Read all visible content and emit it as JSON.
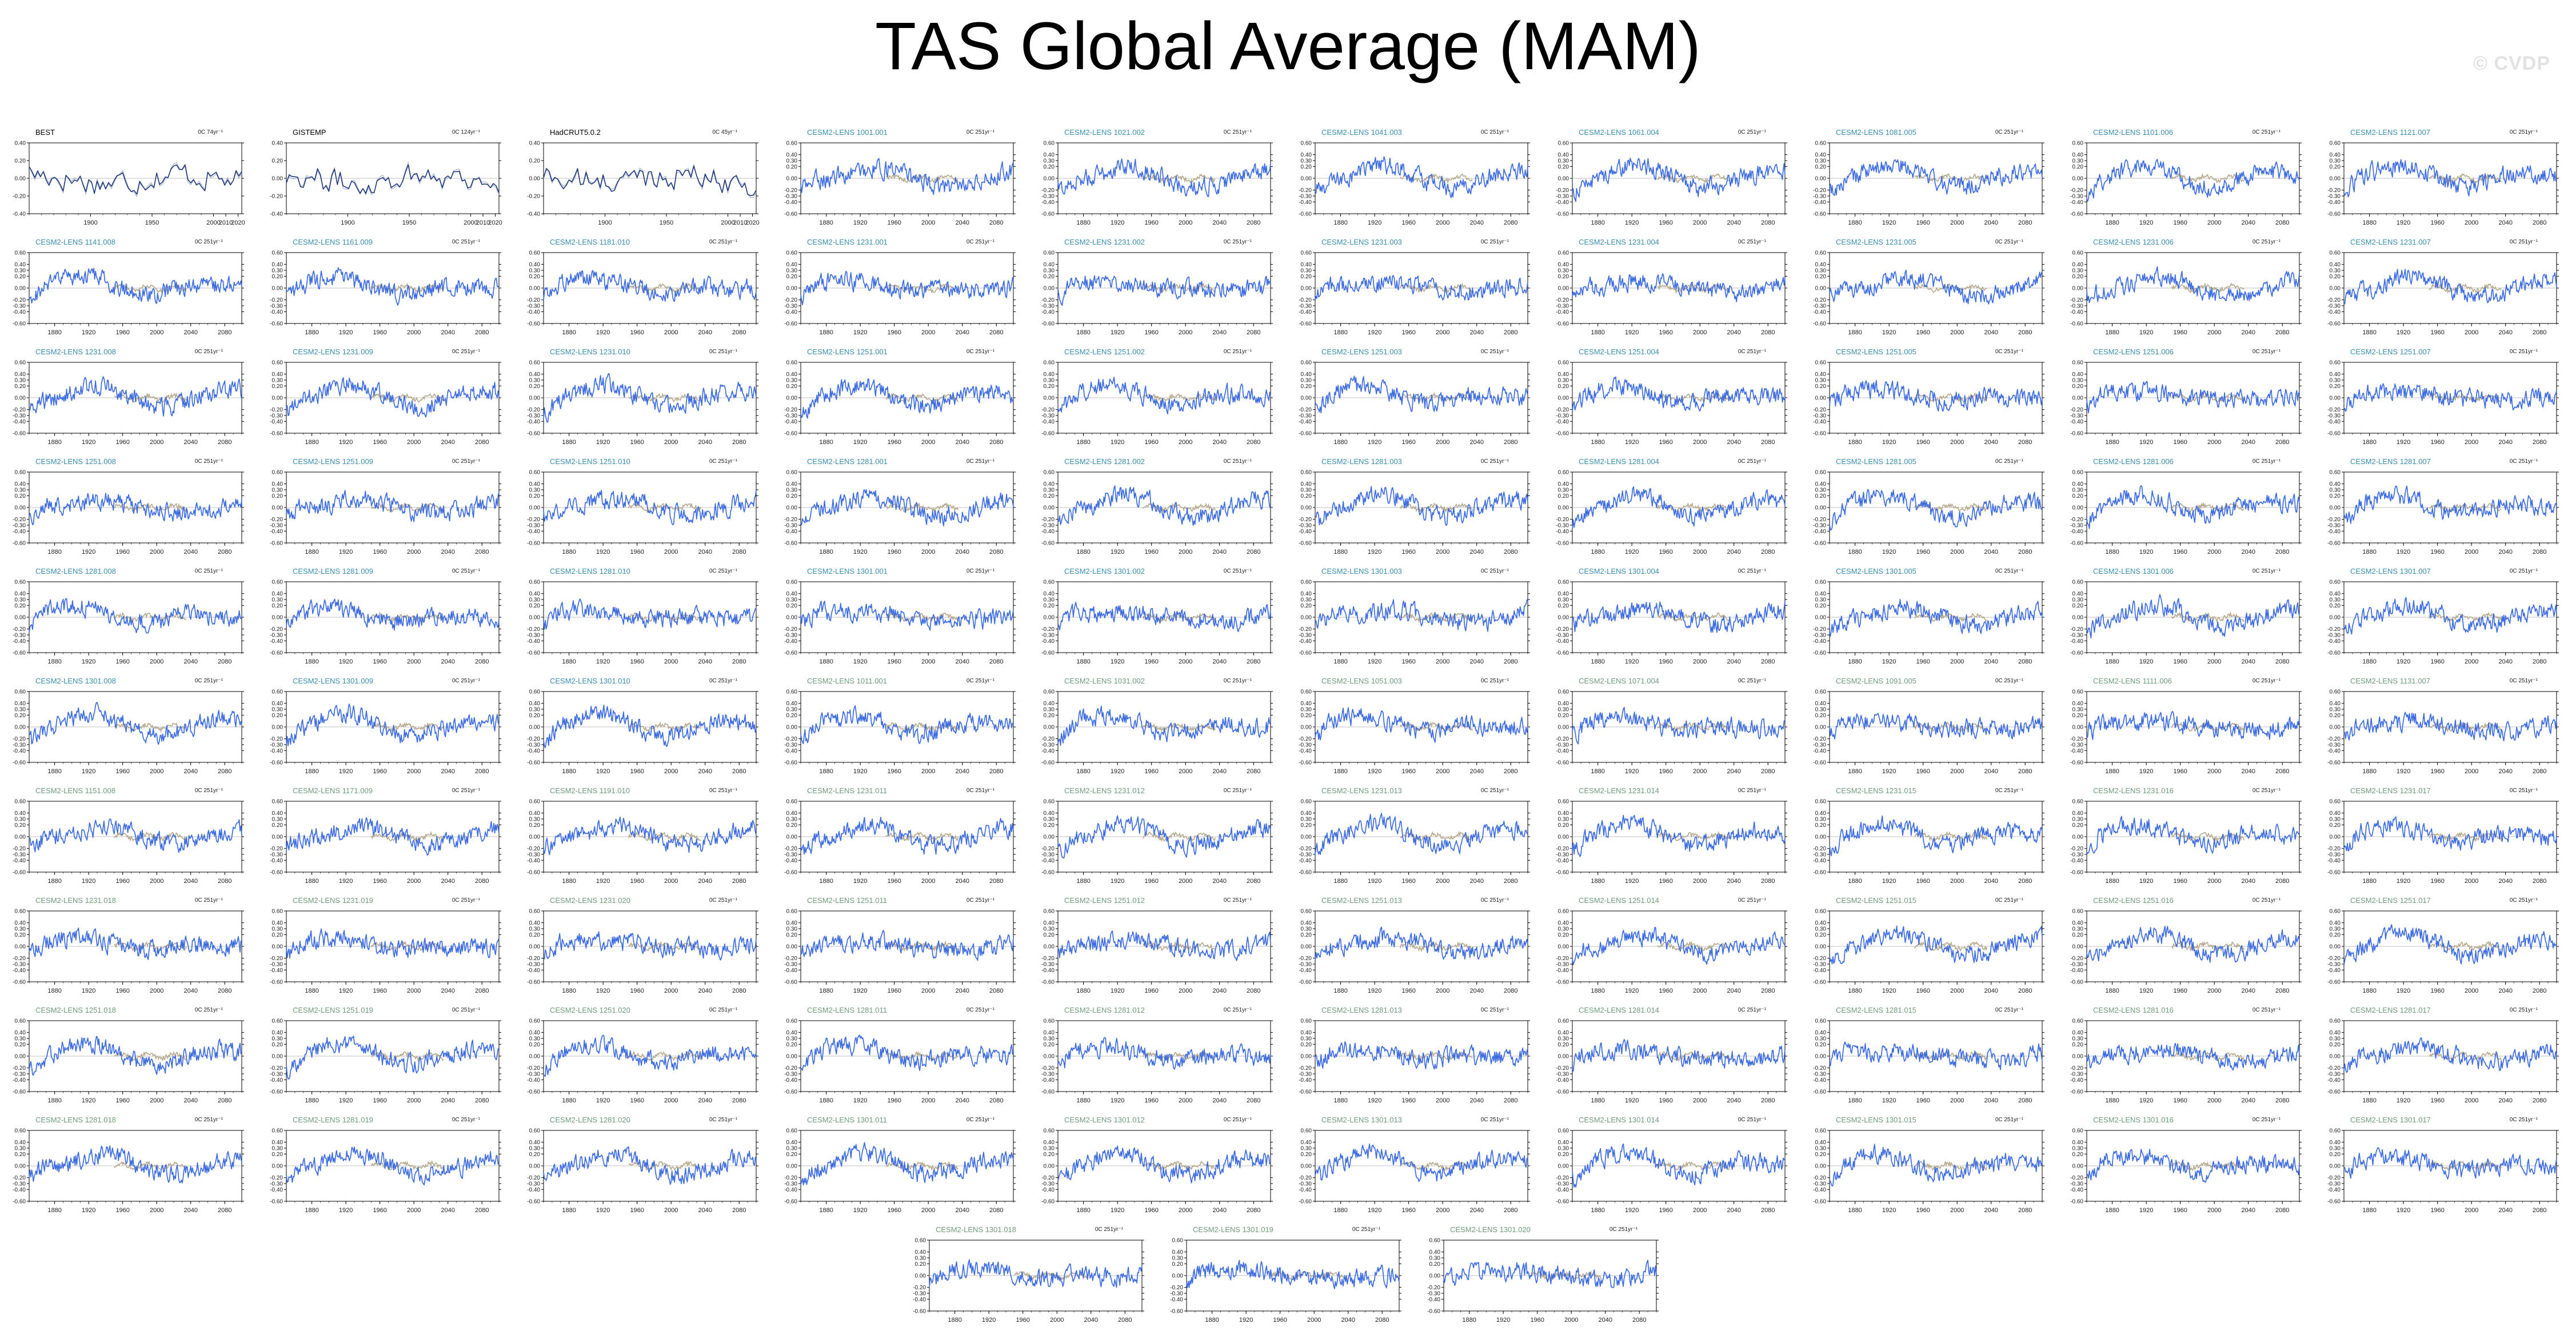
{
  "title": "TAS Global Average (MAM)",
  "watermark": "© CVDP",
  "colors": {
    "series": "#3d6be0",
    "observation": "#1f3a7a",
    "reference": "#b5a88a",
    "zero_line": "#bfbfbf",
    "label_cesm_early": "#3b8fb0",
    "label_cesm_late": "#6f9c7c",
    "label_obs": "#000000"
  },
  "chart_data": {
    "type": "line",
    "layout": "small-multiples",
    "columns": 10,
    "observation_x_range": [
      1850,
      2023
    ],
    "model_x_range": [
      1850,
      2100
    ],
    "observation_xticks": [
      1900,
      1950,
      2000,
      2010,
      2020
    ],
    "model_xticks": [
      1880,
      1920,
      1960,
      2000,
      2040,
      2080
    ],
    "observation_ylim": [
      -0.4,
      0.4
    ],
    "model_ylim": [
      -0.6,
      0.6
    ],
    "observation_yticks": [
      "0.40",
      "0.20",
      "0.00",
      "-0.20",
      "-0.40"
    ],
    "model_yticks": [
      "0.60",
      "0.40",
      "0.30",
      "0.20",
      "0.00",
      "-0.20",
      "-0.30",
      "-0.40",
      "-0.60"
    ],
    "panels": [
      {
        "title": "BEST",
        "kind": "obs",
        "trend": "0C 74yr⁻¹"
      },
      {
        "title": "GISTEMP",
        "kind": "obs",
        "trend": "0C 124yr⁻¹"
      },
      {
        "title": "HadCRUT5.0.2",
        "kind": "obs",
        "trend": "0C 45yr⁻¹"
      },
      {
        "title": "CESM2-LENS 1001.001",
        "kind": "model",
        "trend": "0C 251yr⁻¹"
      },
      {
        "title": "CESM2-LENS 1021.002",
        "kind": "model",
        "trend": "0C 251yr⁻¹"
      },
      {
        "title": "CESM2-LENS 1041.003",
        "kind": "model",
        "trend": "0C 251yr⁻¹"
      },
      {
        "title": "CESM2-LENS 1061.004",
        "kind": "model",
        "trend": "0C 251yr⁻¹"
      },
      {
        "title": "CESM2-LENS 1081.005",
        "kind": "model",
        "trend": "0C 251yr⁻¹"
      },
      {
        "title": "CESM2-LENS 1101.006",
        "kind": "model",
        "trend": "0C 251yr⁻¹"
      },
      {
        "title": "CESM2-LENS 1121.007",
        "kind": "model",
        "trend": "0C 251yr⁻¹"
      },
      {
        "title": "CESM2-LENS 1141.008",
        "kind": "model",
        "trend": "0C 251yr⁻¹"
      },
      {
        "title": "CESM2-LENS 1161.009",
        "kind": "model",
        "trend": "0C 251yr⁻¹"
      },
      {
        "title": "CESM2-LENS 1181.010",
        "kind": "model",
        "trend": "0C 251yr⁻¹"
      },
      {
        "title": "CESM2-LENS 1231.001",
        "kind": "model",
        "trend": "0C 251yr⁻¹"
      },
      {
        "title": "CESM2-LENS 1231.002",
        "kind": "model",
        "trend": "0C 251yr⁻¹"
      },
      {
        "title": "CESM2-LENS 1231.003",
        "kind": "model",
        "trend": "0C 251yr⁻¹"
      },
      {
        "title": "CESM2-LENS 1231.004",
        "kind": "model",
        "trend": "0C 251yr⁻¹"
      },
      {
        "title": "CESM2-LENS 1231.005",
        "kind": "model",
        "trend": "0C 251yr⁻¹"
      },
      {
        "title": "CESM2-LENS 1231.006",
        "kind": "model",
        "trend": "0C 251yr⁻¹"
      },
      {
        "title": "CESM2-LENS 1231.007",
        "kind": "model",
        "trend": "0C 251yr⁻¹"
      },
      {
        "title": "CESM2-LENS 1231.008",
        "kind": "model",
        "trend": "0C 251yr⁻¹"
      },
      {
        "title": "CESM2-LENS 1231.009",
        "kind": "model",
        "trend": "0C 251yr⁻¹"
      },
      {
        "title": "CESM2-LENS 1231.010",
        "kind": "model",
        "trend": "0C 251yr⁻¹"
      },
      {
        "title": "CESM2-LENS 1251.001",
        "kind": "model",
        "trend": "0C 251yr⁻¹"
      },
      {
        "title": "CESM2-LENS 1251.002",
        "kind": "model",
        "trend": "0C 251yr⁻¹"
      },
      {
        "title": "CESM2-LENS 1251.003",
        "kind": "model",
        "trend": "0C 251yr⁻¹"
      },
      {
        "title": "CESM2-LENS 1251.004",
        "kind": "model",
        "trend": "0C 251yr⁻¹"
      },
      {
        "title": "CESM2-LENS 1251.005",
        "kind": "model",
        "trend": "0C 251yr⁻¹"
      },
      {
        "title": "CESM2-LENS 1251.006",
        "kind": "model",
        "trend": "0C 251yr⁻¹"
      },
      {
        "title": "CESM2-LENS 1251.007",
        "kind": "model",
        "trend": "0C 251yr⁻¹"
      },
      {
        "title": "CESM2-LENS 1251.008",
        "kind": "model",
        "trend": "0C 251yr⁻¹"
      },
      {
        "title": "CESM2-LENS 1251.009",
        "kind": "model",
        "trend": "0C 251yr⁻¹"
      },
      {
        "title": "CESM2-LENS 1251.010",
        "kind": "model",
        "trend": "0C 251yr⁻¹"
      },
      {
        "title": "CESM2-LENS 1281.001",
        "kind": "model",
        "trend": "0C 251yr⁻¹"
      },
      {
        "title": "CESM2-LENS 1281.002",
        "kind": "model",
        "trend": "0C 251yr⁻¹"
      },
      {
        "title": "CESM2-LENS 1281.003",
        "kind": "model",
        "trend": "0C 251yr⁻¹"
      },
      {
        "title": "CESM2-LENS 1281.004",
        "kind": "model",
        "trend": "0C 251yr⁻¹"
      },
      {
        "title": "CESM2-LENS 1281.005",
        "kind": "model",
        "trend": "0C 251yr⁻¹"
      },
      {
        "title": "CESM2-LENS 1281.006",
        "kind": "model",
        "trend": "0C 251yr⁻¹"
      },
      {
        "title": "CESM2-LENS 1281.007",
        "kind": "model",
        "trend": "0C 251yr⁻¹"
      },
      {
        "title": "CESM2-LENS 1281.008",
        "kind": "model",
        "trend": "0C 251yr⁻¹"
      },
      {
        "title": "CESM2-LENS 1281.009",
        "kind": "model",
        "trend": "0C 251yr⁻¹"
      },
      {
        "title": "CESM2-LENS 1281.010",
        "kind": "model",
        "trend": "0C 251yr⁻¹"
      },
      {
        "title": "CESM2-LENS 1301.001",
        "kind": "model",
        "trend": "0C 251yr⁻¹"
      },
      {
        "title": "CESM2-LENS 1301.002",
        "kind": "model",
        "trend": "0C 251yr⁻¹"
      },
      {
        "title": "CESM2-LENS 1301.003",
        "kind": "model",
        "trend": "0C 251yr⁻¹"
      },
      {
        "title": "CESM2-LENS 1301.004",
        "kind": "model",
        "trend": "0C 251yr⁻¹"
      },
      {
        "title": "CESM2-LENS 1301.005",
        "kind": "model",
        "trend": "0C 251yr⁻¹"
      },
      {
        "title": "CESM2-LENS 1301.006",
        "kind": "model",
        "trend": "0C 251yr⁻¹"
      },
      {
        "title": "CESM2-LENS 1301.007",
        "kind": "model",
        "trend": "0C 251yr⁻¹"
      },
      {
        "title": "CESM2-LENS 1301.008",
        "kind": "model",
        "trend": "0C 251yr⁻¹"
      },
      {
        "title": "CESM2-LENS 1301.009",
        "kind": "model",
        "trend": "0C 251yr⁻¹"
      },
      {
        "title": "CESM2-LENS 1301.010",
        "kind": "model",
        "trend": "0C 251yr⁻¹"
      },
      {
        "title": "CESM2-LENS 1011.001",
        "kind": "model",
        "trend": "0C 251yr⁻¹"
      },
      {
        "title": "CESM2-LENS 1031.002",
        "kind": "model",
        "trend": "0C 251yr⁻¹"
      },
      {
        "title": "CESM2-LENS 1051.003",
        "kind": "model",
        "trend": "0C 251yr⁻¹"
      },
      {
        "title": "CESM2-LENS 1071.004",
        "kind": "model",
        "trend": "0C 251yr⁻¹"
      },
      {
        "title": "CESM2-LENS 1091.005",
        "kind": "model",
        "trend": "0C 251yr⁻¹"
      },
      {
        "title": "CESM2-LENS 1111.006",
        "kind": "model",
        "trend": "0C 251yr⁻¹"
      },
      {
        "title": "CESM2-LENS 1131.007",
        "kind": "model",
        "trend": "0C 251yr⁻¹"
      },
      {
        "title": "CESM2-LENS 1151.008",
        "kind": "model",
        "trend": "0C 251yr⁻¹"
      },
      {
        "title": "CESM2-LENS 1171.009",
        "kind": "model",
        "trend": "0C 251yr⁻¹"
      },
      {
        "title": "CESM2-LENS 1191.010",
        "kind": "model",
        "trend": "0C 251yr⁻¹"
      },
      {
        "title": "CESM2-LENS 1231.011",
        "kind": "model",
        "trend": "0C 251yr⁻¹"
      },
      {
        "title": "CESM2-LENS 1231.012",
        "kind": "model",
        "trend": "0C 251yr⁻¹"
      },
      {
        "title": "CESM2-LENS 1231.013",
        "kind": "model",
        "trend": "0C 251yr⁻¹"
      },
      {
        "title": "CESM2-LENS 1231.014",
        "kind": "model",
        "trend": "0C 251yr⁻¹"
      },
      {
        "title": "CESM2-LENS 1231.015",
        "kind": "model",
        "trend": "0C 251yr⁻¹"
      },
      {
        "title": "CESM2-LENS 1231.016",
        "kind": "model",
        "trend": "0C 251yr⁻¹"
      },
      {
        "title": "CESM2-LENS 1231.017",
        "kind": "model",
        "trend": "0C 251yr⁻¹"
      },
      {
        "title": "CESM2-LENS 1231.018",
        "kind": "model",
        "trend": "0C 251yr⁻¹"
      },
      {
        "title": "CESM2-LENS 1231.019",
        "kind": "model",
        "trend": "0C 251yr⁻¹"
      },
      {
        "title": "CESM2-LENS 1231.020",
        "kind": "model",
        "trend": "0C 251yr⁻¹"
      },
      {
        "title": "CESM2-LENS 1251.011",
        "kind": "model",
        "trend": "0C 251yr⁻¹"
      },
      {
        "title": "CESM2-LENS 1251.012",
        "kind": "model",
        "trend": "0C 251yr⁻¹"
      },
      {
        "title": "CESM2-LENS 1251.013",
        "kind": "model",
        "trend": "0C 251yr⁻¹"
      },
      {
        "title": "CESM2-LENS 1251.014",
        "kind": "model",
        "trend": "0C 251yr⁻¹"
      },
      {
        "title": "CESM2-LENS 1251.015",
        "kind": "model",
        "trend": "0C 251yr⁻¹"
      },
      {
        "title": "CESM2-LENS 1251.016",
        "kind": "model",
        "trend": "0C 251yr⁻¹"
      },
      {
        "title": "CESM2-LENS 1251.017",
        "kind": "model",
        "trend": "0C 251yr⁻¹"
      },
      {
        "title": "CESM2-LENS 1251.018",
        "kind": "model",
        "trend": "0C 251yr⁻¹"
      },
      {
        "title": "CESM2-LENS 1251.019",
        "kind": "model",
        "trend": "0C 251yr⁻¹"
      },
      {
        "title": "CESM2-LENS 1251.020",
        "kind": "model",
        "trend": "0C 251yr⁻¹"
      },
      {
        "title": "CESM2-LENS 1281.011",
        "kind": "model",
        "trend": "0C 251yr⁻¹"
      },
      {
        "title": "CESM2-LENS 1281.012",
        "kind": "model",
        "trend": "0C 251yr⁻¹"
      },
      {
        "title": "CESM2-LENS 1281.013",
        "kind": "model",
        "trend": "0C 251yr⁻¹"
      },
      {
        "title": "CESM2-LENS 1281.014",
        "kind": "model",
        "trend": "0C 251yr⁻¹"
      },
      {
        "title": "CESM2-LENS 1281.015",
        "kind": "model",
        "trend": "0C 251yr⁻¹"
      },
      {
        "title": "CESM2-LENS 1281.016",
        "kind": "model",
        "trend": "0C 251yr⁻¹"
      },
      {
        "title": "CESM2-LENS 1281.017",
        "kind": "model",
        "trend": "0C 251yr⁻¹"
      },
      {
        "title": "CESM2-LENS 1281.018",
        "kind": "model",
        "trend": "0C 251yr⁻¹"
      },
      {
        "title": "CESM2-LENS 1281.019",
        "kind": "model",
        "trend": "0C 251yr⁻¹"
      },
      {
        "title": "CESM2-LENS 1281.020",
        "kind": "model",
        "trend": "0C 251yr⁻¹"
      },
      {
        "title": "CESM2-LENS 1301.011",
        "kind": "model",
        "trend": "0C 251yr⁻¹"
      },
      {
        "title": "CESM2-LENS 1301.012",
        "kind": "model",
        "trend": "0C 251yr⁻¹"
      },
      {
        "title": "CESM2-LENS 1301.013",
        "kind": "model",
        "trend": "0C 251yr⁻¹"
      },
      {
        "title": "CESM2-LENS 1301.014",
        "kind": "model",
        "trend": "0C 251yr⁻¹"
      },
      {
        "title": "CESM2-LENS 1301.015",
        "kind": "model",
        "trend": "0C 251yr⁻¹"
      },
      {
        "title": "CESM2-LENS 1301.016",
        "kind": "model",
        "trend": "0C 251yr⁻¹"
      },
      {
        "title": "CESM2-LENS 1301.017",
        "kind": "model",
        "trend": "0C 251yr⁻¹"
      },
      {
        "title": "CESM2-LENS 1301.018",
        "kind": "model",
        "trend": "0C 251yr⁻¹"
      },
      {
        "title": "CESM2-LENS 1301.019",
        "kind": "model",
        "trend": "0C 251yr⁻¹"
      },
      {
        "title": "CESM2-LENS 1301.020",
        "kind": "model",
        "trend": "0C 251yr⁻¹"
      }
    ]
  }
}
